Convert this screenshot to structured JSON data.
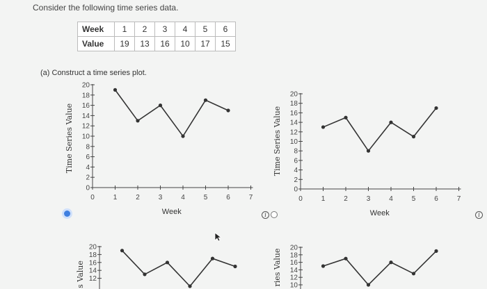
{
  "question": "Consider the following time series data.",
  "table": {
    "row1_header": "Week",
    "row2_header": "Value",
    "weeks": [
      "1",
      "2",
      "3",
      "4",
      "5",
      "6"
    ],
    "values": [
      "19",
      "13",
      "16",
      "10",
      "17",
      "15"
    ]
  },
  "part_a_label": "(a) Construct a time series plot.",
  "info_icon_glyph": "i",
  "accent_color": "#3f7fe0",
  "chart_data": [
    {
      "type": "line",
      "option": "A (selected)",
      "xlabel": "Week",
      "ylabel": "Time Series Value",
      "x": [
        1,
        2,
        3,
        4,
        5,
        6
      ],
      "y": [
        19,
        13,
        16,
        10,
        17,
        15
      ],
      "xlim": [
        0,
        7
      ],
      "ylim": [
        0,
        20
      ],
      "xticks": [
        "0",
        "1",
        "2",
        "3",
        "4",
        "5",
        "6",
        "7"
      ],
      "yticks": [
        "0",
        "2",
        "4",
        "6",
        "8",
        "10",
        "12",
        "14",
        "16",
        "18",
        "20"
      ]
    },
    {
      "type": "line",
      "option": "B",
      "xlabel": "Week",
      "ylabel": "Time Series Value",
      "x": [
        1,
        2,
        3,
        4,
        5,
        6
      ],
      "y": [
        13,
        15,
        8,
        14,
        11,
        17
      ],
      "xlim": [
        0,
        7
      ],
      "ylim": [
        0,
        20
      ],
      "xticks": [
        "0",
        "1",
        "2",
        "3",
        "4",
        "5",
        "6",
        "7"
      ],
      "yticks": [
        "0",
        "2",
        "4",
        "6",
        "8",
        "10",
        "12",
        "14",
        "16",
        "18",
        "20"
      ]
    },
    {
      "type": "line",
      "option": "C (partially visible)",
      "ylabel": "s Value",
      "x": [
        1,
        2,
        3,
        4,
        5,
        6
      ],
      "y": [
        19,
        13,
        16,
        10,
        17,
        15
      ],
      "yticks": [
        "12",
        "14",
        "16",
        "18",
        "20"
      ]
    },
    {
      "type": "line",
      "option": "D (partially visible)",
      "ylabel": "ries Value",
      "x": [
        1,
        2,
        3,
        4,
        5,
        6
      ],
      "y": [
        15,
        17,
        10,
        16,
        13,
        19
      ],
      "yticks": [
        "10",
        "12",
        "14",
        "16",
        "18",
        "20"
      ]
    }
  ]
}
